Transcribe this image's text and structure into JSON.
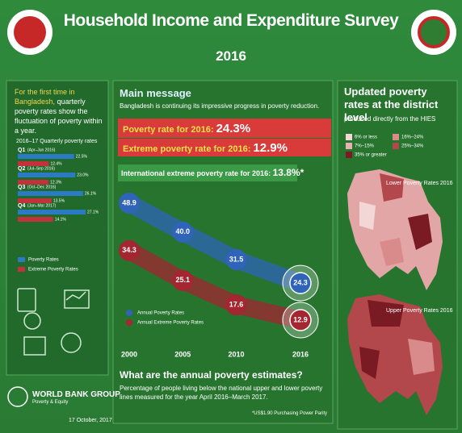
{
  "header": {
    "title": "Household Income and Expenditure Survey",
    "year": "2016"
  },
  "left": {
    "intro_lead": "For the first time in Bangladesh,",
    "intro_rest": "quarterly poverty rates show the fluctuation of poverty within a year."
  },
  "main": {
    "heading": "Main message",
    "text": "Bangladesh is continuing its impressive progress in poverty reduction.",
    "poverty_label": "Poverty rate for 2016:",
    "poverty_value": "24.3%",
    "extreme_label": "Extreme poverty rate for 2016:",
    "extreme_value": "12.9%",
    "intl_label": "International extreme poverty rate for 2016:",
    "intl_value": "13.8%*"
  },
  "annual": {
    "heading": "What are the annual poverty estimates?",
    "text": "Percentage of people living below the national upper and lower poverty lines measured for the year April 2016–March 2017.",
    "footnote": "*US$1.90 Purchasing Power Parity"
  },
  "map": {
    "title": "Updated poverty rates at the district level",
    "subtitle": "produced directly from the HIES",
    "legend": [
      {
        "label": "6% or less",
        "color": "#f3d6d6"
      },
      {
        "label": "16%–24%",
        "color": "#d98b8b"
      },
      {
        "label": "7%–15%",
        "color": "#e8b0b0"
      },
      {
        "label": "25%–34%",
        "color": "#b2484b"
      },
      {
        "label": "35% or greater",
        "color": "#7a1a22"
      }
    ],
    "lower_title": "Lower Poverty Rates 2016",
    "upper_title": "Upper Poverty Rates 2016"
  },
  "footer": {
    "org": "WORLD BANK GROUP",
    "unit": "Poverty & Equity",
    "date": "17 October, 2017"
  },
  "chart_data": [
    {
      "type": "hbar",
      "title": "2016–17 Quarterly poverty rates",
      "categories": [
        "Q1",
        "Q2",
        "Q3",
        "Q4"
      ],
      "periods": [
        "(Apr–Jun 2016)",
        "(Jul–Sep 2016)",
        "(Oct–Dec 2016)",
        "(Jan–Mar 2017)"
      ],
      "series": [
        {
          "name": "Poverty Rates",
          "color": "#2a7bc4",
          "values": [
            22.5,
            23.0,
            26.1,
            27.1
          ],
          "value_labels": [
            "22.5%",
            "23.0%",
            "26.1%",
            "27.1%"
          ]
        },
        {
          "name": "Extreme Poverty Rates",
          "color": "#c1323b",
          "values": [
            12.4,
            12.3,
            13.5,
            14.1
          ],
          "value_labels": [
            "12.4%",
            "12.3%",
            "13.5%",
            "14.1%"
          ]
        }
      ]
    },
    {
      "type": "line",
      "x": [
        2000,
        2005,
        2010,
        2016
      ],
      "xlim": [
        2000,
        2016
      ],
      "xticks": [
        2000,
        2005,
        2010,
        2016
      ],
      "series": [
        {
          "name": "Annual Poverty Rates",
          "color": "#2f64b8",
          "values": [
            48.9,
            40.0,
            31.5,
            24.3
          ],
          "value_labels": [
            "48.9",
            "40.0",
            "31.5",
            "24.3"
          ]
        },
        {
          "name": "Annual Extreme Poverty Rates",
          "color": "#a32630",
          "values": [
            34.3,
            25.1,
            17.6,
            12.9
          ]
        }
      ]
    }
  ]
}
